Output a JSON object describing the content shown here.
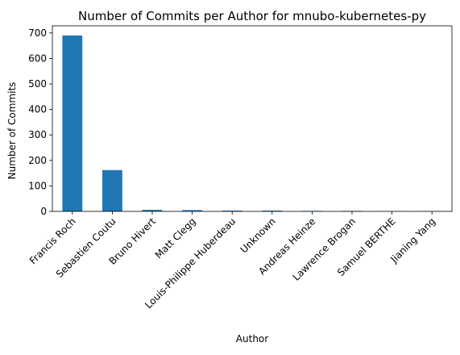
{
  "chart_data": {
    "type": "bar",
    "title": "Number of Commits per Author for mnubo-kubernetes-py",
    "xlabel": "Author",
    "ylabel": "Number of Commits",
    "categories": [
      "Francis Roch",
      "Sebastien Coutu",
      "Bruno Hivert",
      "Matt Clegg",
      "Louis-Philippe Huberdeau",
      "Unknown",
      "Andreas Heinze",
      "Lawrence Brogan",
      "Samuel BERTHE",
      "Jianing Yang"
    ],
    "values": [
      690,
      162,
      6,
      5,
      3,
      3,
      2,
      2,
      1,
      1
    ],
    "ylim": [
      0,
      728
    ],
    "yticks": [
      0,
      100,
      200,
      300,
      400,
      500,
      600,
      700
    ],
    "grid": false,
    "bar_color": "#1f77b4"
  }
}
